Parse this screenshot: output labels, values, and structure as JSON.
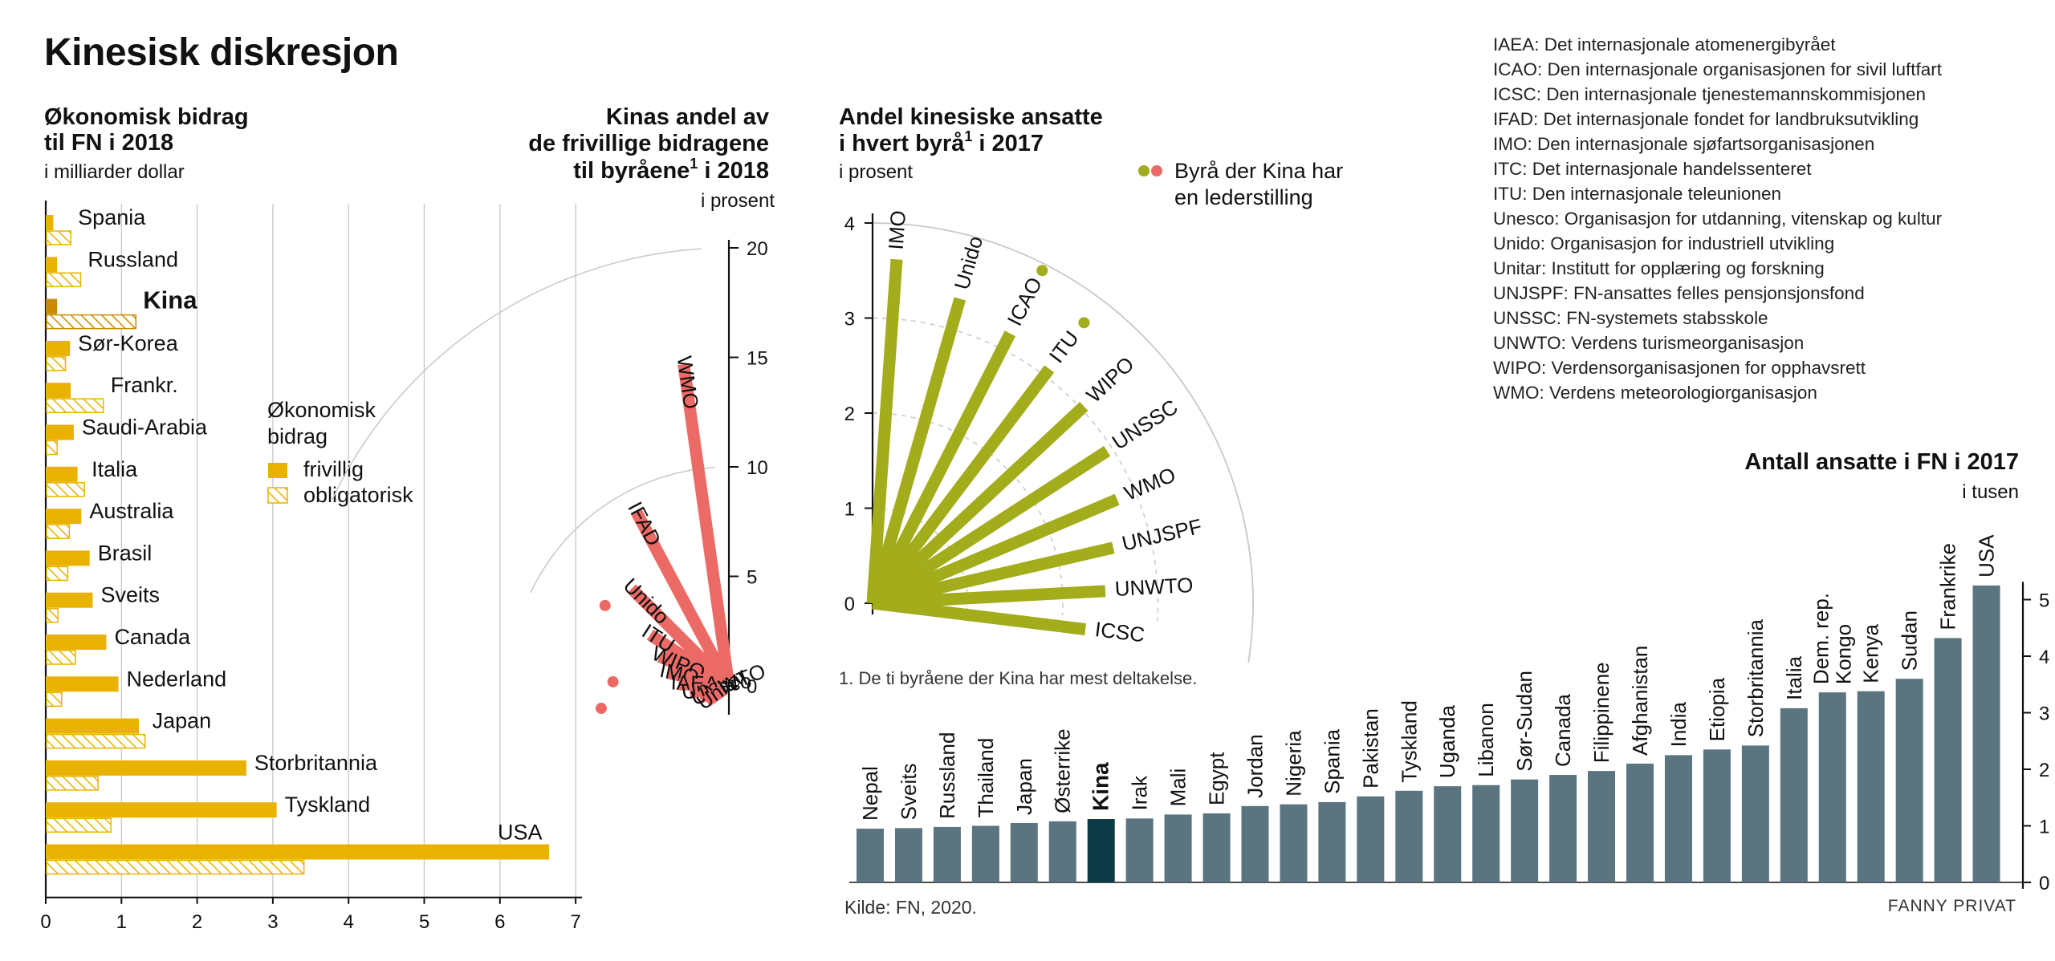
{
  "title": "Kinesisk diskresjon",
  "colors": {
    "yellow": "#e9b200",
    "yellow_dark": "#c98a00",
    "red": "#ec6a66",
    "olive": "#a3ac1a",
    "slate": "#5a7480",
    "china_bar": "#0c3a45",
    "grid": "#c8c8c8"
  },
  "chart_data": [
    {
      "id": "contrib",
      "type": "bar",
      "orientation": "horizontal",
      "title": "Økonomisk bidrag til FN i 2018",
      "title_lines": [
        "Økonomisk bidrag",
        "til FN i 2018"
      ],
      "subtitle": "i milliarder dollar",
      "legend_title_lines": [
        "Økonomisk",
        "bidrag"
      ],
      "categories": [
        "Spania",
        "Russland",
        "Kina",
        "Sør-Korea",
        "Frankr.",
        "Saudi-Arabia",
        "Italia",
        "Australia",
        "Brasil",
        "Sveits",
        "Canada",
        "Nederland",
        "Japan",
        "Storbritannia",
        "Tyskland",
        "USA"
      ],
      "highlight": "Kina",
      "series": [
        {
          "name": "frivillig",
          "values": [
            0.1,
            0.15,
            0.15,
            0.32,
            0.33,
            0.37,
            0.42,
            0.47,
            0.58,
            0.62,
            0.8,
            0.96,
            1.23,
            2.65,
            3.05,
            6.65
          ]
        },
        {
          "name": "obligatorisk",
          "values": [
            0.32,
            0.45,
            1.18,
            0.25,
            0.75,
            0.14,
            0.5,
            0.3,
            0.28,
            0.15,
            0.38,
            0.2,
            1.3,
            0.68,
            0.85,
            3.4
          ]
        }
      ],
      "xlim": [
        0,
        7
      ],
      "x_ticks": [
        "0",
        "1",
        "2",
        "3",
        "4",
        "5",
        "6",
        "7"
      ],
      "grid": true
    },
    {
      "id": "share",
      "type": "bar",
      "orientation": "radial",
      "title": "Kinas andel av de frivillige bidragene til byråene¹ i 2018",
      "title_lines": [
        "Kinas andel av",
        "de frivillige bidragene",
        "til byråene",
        "i 2018"
      ],
      "footnote_mark": "1",
      "subtitle": "i prosent",
      "categories": [
        "WMO",
        "IFAD",
        "Unido",
        "ITU",
        "WIPO",
        "IMO",
        "IAEA",
        "Unesco",
        "UNWTO",
        "Unitar"
      ],
      "values": [
        15.3,
        9.2,
        6.3,
        4.2,
        3.3,
        2.7,
        2.1,
        1.6,
        1.2,
        1.0
      ],
      "leadership_marker": [
        "ITU",
        "IAEA",
        "Unesco"
      ],
      "rlim": [
        0,
        20
      ],
      "r_ticks": [
        "0",
        "5",
        "10",
        "15",
        "20"
      ],
      "grid": true
    },
    {
      "id": "staff_share",
      "type": "bar",
      "orientation": "radial",
      "title": "Andel kinesiske ansatte i hvert byrå¹ i 2017",
      "title_lines": [
        "Andel kinesiske ansatte",
        "i hvert byrå",
        "i 2017"
      ],
      "footnote_mark": "1",
      "subtitle": "i prosent",
      "categories": [
        "IMO",
        "Unido",
        "ICAO",
        "ITU",
        "WIPO",
        "UNSSC",
        "WMO",
        "UNJSPF",
        "UNWTO",
        "ICSC"
      ],
      "values": [
        3.7,
        3.4,
        3.25,
        3.15,
        3.1,
        3.0,
        2.85,
        2.65,
        2.5,
        2.3
      ],
      "leadership_marker": [
        "ICAO",
        "ITU"
      ],
      "rlim": [
        0,
        4
      ],
      "r_ticks": [
        "0",
        "1",
        "2",
        "3",
        "4"
      ],
      "legend": "Byrå der Kina har en lederstilling",
      "legend_lines": [
        "Byrå der Kina har",
        "en lederstilling"
      ],
      "footnote": "1. De ti byråene der Kina har mest deltakelse.",
      "grid": true
    },
    {
      "id": "staff_count",
      "type": "bar",
      "orientation": "vertical",
      "title": "Antall ansatte i FN i 2017",
      "subtitle": "i tusen",
      "categories": [
        "Nepal",
        "Sveits",
        "Russland",
        "Thailand",
        "Japan",
        "Østerrike",
        "Kina",
        "Irak",
        "Mali",
        "Egypt",
        "Jordan",
        "Nigeria",
        "Spania",
        "Pakistan",
        "Tyskland",
        "Uganda",
        "Libanon",
        "Sør-Sudan",
        "Canada",
        "Filippinene",
        "Afghanistan",
        "India",
        "Etiopia",
        "Storbritannia",
        "Italia",
        "Dem. rep. Kongo",
        "Kenya",
        "Sudan",
        "Frankrike",
        "USA"
      ],
      "label_lines": {
        "Dem. rep. Kongo": [
          "Dem. rep.",
          "Kongo"
        ]
      },
      "highlight": "Kina",
      "values": [
        0.95,
        0.96,
        0.98,
        1.0,
        1.05,
        1.08,
        1.12,
        1.13,
        1.2,
        1.22,
        1.35,
        1.38,
        1.42,
        1.52,
        1.62,
        1.7,
        1.72,
        1.82,
        1.9,
        1.97,
        2.1,
        2.25,
        2.35,
        2.42,
        3.08,
        3.36,
        3.38,
        3.6,
        4.32,
        5.25
      ],
      "ylim": [
        0,
        5.6
      ],
      "y_ticks": [
        "0",
        "1",
        "2",
        "3",
        "4",
        "5"
      ],
      "grid": false
    }
  ],
  "glossary": [
    "IAEA: Det internasjonale atomenergibyrået",
    "ICAO: Den internasjonale organisasjonen for sivil luftfart",
    "ICSC: Den internasjonale tjenestemannskommisjonen",
    "IFAD: Det internasjonale fondet for landbruksutvikling",
    "IMO: Den internasjonale sjøfartsorganisasjonen",
    "ITC: Det internasjonale handelssenteret",
    "ITU: Den internasjonale teleunionen",
    "Unesco: Organisasjon for utdanning, vitenskap og kultur",
    "Unido: Organisasjon for industriell utvikling",
    "Unitar: Institutt for opplæring og forskning",
    "UNJSPF: FN-ansattes felles pensjonsjonsfond",
    "UNSSC: FN-systemets stabsskole",
    "UNWTO: Verdens turismeorganisasjon",
    "WIPO: Verdensorganisasjonen for opphavsrett",
    "WMO: Verdens meteorologiorganisasjon"
  ],
  "source": "Kilde: FN, 2020.",
  "credit": "FANNY PRIVAT"
}
